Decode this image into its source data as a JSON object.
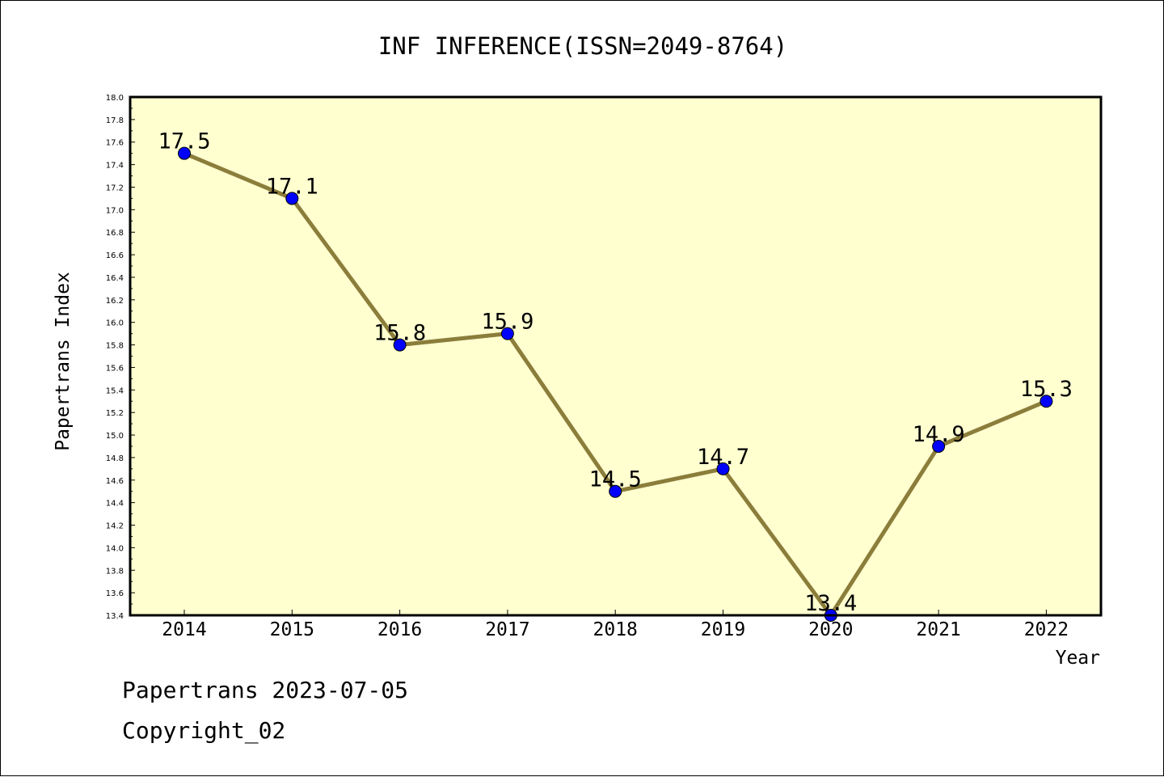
{
  "chart_data": {
    "type": "line",
    "title": "INF INFERENCE(ISSN=2049-8764)",
    "xlabel": "Year",
    "ylabel": "Papertrans Index",
    "categories": [
      "2014",
      "2015",
      "2016",
      "2017",
      "2018",
      "2019",
      "2020",
      "2021",
      "2022"
    ],
    "series": [
      {
        "values": [
          17.5,
          17.1,
          15.8,
          15.9,
          14.5,
          14.7,
          13.4,
          14.9,
          15.3
        ]
      }
    ],
    "data_labels": [
      "17.5",
      "17.1",
      "15.8",
      "15.9",
      "14.5",
      "14.7",
      "13.4",
      "14.9",
      "15.3"
    ],
    "ylim": [
      13.4,
      18.0
    ],
    "yticks": [
      "13.4",
      "13.6",
      "13.8",
      "14.0",
      "14.2",
      "14.4",
      "14.6",
      "14.8",
      "15.0",
      "15.2",
      "15.4",
      "15.6",
      "15.8",
      "16.0",
      "16.2",
      "16.4",
      "16.6",
      "16.8",
      "17.0",
      "17.2",
      "17.4",
      "17.6",
      "17.8",
      "18.0"
    ],
    "grid": false,
    "colors": {
      "line": "#8b7d3a",
      "marker": "#0000ff",
      "plot_background": "#ffffd0"
    }
  },
  "footer": {
    "date_line": "Papertrans 2023-07-05",
    "copyright": "Copyright_02"
  }
}
